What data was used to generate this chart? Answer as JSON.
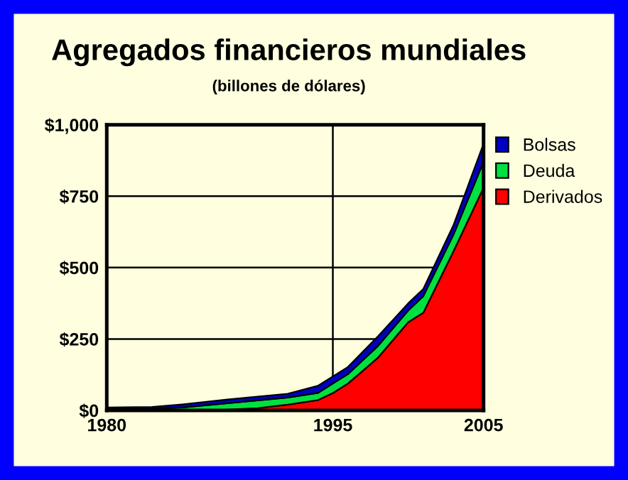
{
  "chart_data": {
    "type": "area",
    "stacked": true,
    "title": "Agregados financieros mundiales",
    "subtitle": "(billones de dólares)",
    "x": [
      1980,
      1983,
      1985,
      1988,
      1990,
      1992,
      1994,
      1995,
      1996,
      1998,
      2000,
      2001,
      2003,
      2005
    ],
    "series": [
      {
        "name": "Derivados",
        "color": "#ff0000",
        "values": [
          0,
          0,
          0,
          3,
          8,
          20,
          36,
          61,
          94,
          185,
          309,
          342,
          557,
          780
        ]
      },
      {
        "name": "Deuda",
        "color": "#00e040",
        "values": [
          5,
          6,
          10,
          22,
          27,
          25,
          25,
          33,
          33,
          41,
          41,
          58,
          58,
          91
        ]
      },
      {
        "name": "Bolsas",
        "color": "#0000c0",
        "values": [
          5,
          6,
          11,
          13,
          13,
          13,
          25,
          25,
          25,
          34,
          25,
          25,
          33,
          63
        ]
      }
    ],
    "xlim": [
      1980,
      2005
    ],
    "xticks": [
      1980,
      1995,
      2005
    ],
    "ylim": [
      0,
      1000
    ],
    "yticks": [
      {
        "value": 0,
        "label": "$0"
      },
      {
        "value": 250,
        "label": "$250"
      },
      {
        "value": 500,
        "label": "$500"
      },
      {
        "value": 750,
        "label": "$750"
      },
      {
        "value": 1000,
        "label": "$1,000"
      }
    ],
    "grid": true,
    "legend": "right"
  }
}
